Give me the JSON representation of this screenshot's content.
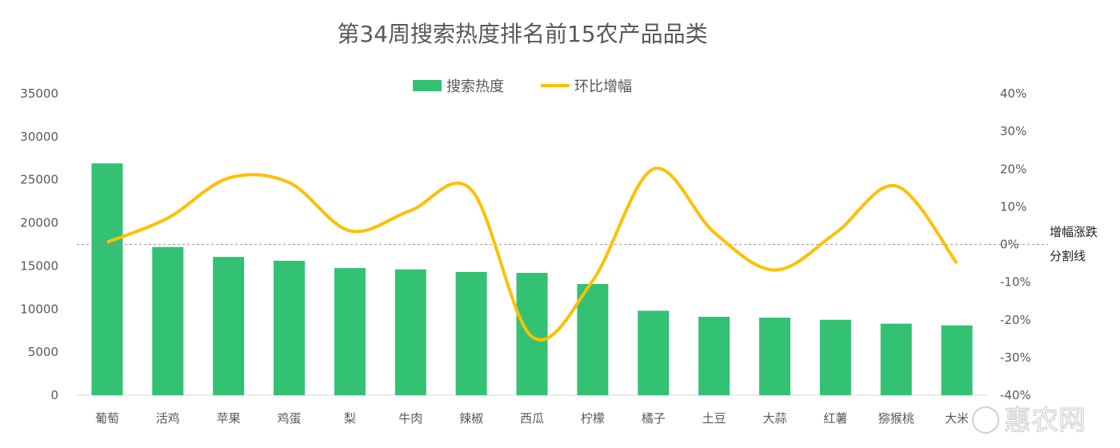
{
  "chart_data": {
    "type": "bar",
    "title": "第34周搜索热度排名前15农产品品类",
    "categories": [
      "葡萄",
      "活鸡",
      "苹果",
      "鸡蛋",
      "梨",
      "牛肉",
      "辣椒",
      "西瓜",
      "柠檬",
      "橘子",
      "土豆",
      "大蒜",
      "红薯",
      "猕猴桃",
      "大米"
    ],
    "series": [
      {
        "name": "搜索热度",
        "type": "bar",
        "axis": "left",
        "color": "#33c173",
        "values": [
          26900,
          17200,
          16050,
          15600,
          14750,
          14600,
          14300,
          14200,
          12900,
          9800,
          9100,
          9000,
          8750,
          8300,
          8100
        ]
      },
      {
        "name": "环比增幅",
        "type": "line",
        "axis": "right",
        "color": "#ffc000",
        "unit": "%",
        "values": [
          0.6,
          7,
          17.6,
          16.4,
          3.6,
          9,
          14.5,
          -24.5,
          -9.6,
          20,
          3.2,
          -6.8,
          3,
          15.5,
          -5
        ]
      }
    ],
    "left_axis": {
      "range": [
        0,
        35000
      ],
      "ticks": [
        "0",
        "5000",
        "10000",
        "15000",
        "20000",
        "25000",
        "30000",
        "35000"
      ]
    },
    "right_axis": {
      "range": [
        -40,
        40
      ],
      "ticks": [
        "-40%",
        "-30%",
        "-20%",
        "-10%",
        "0%",
        "10%",
        "20%",
        "30%",
        "40%"
      ]
    },
    "reference_line": {
      "value": 0,
      "label_lines": [
        "增幅涨跌",
        "分割线"
      ]
    },
    "legend_position": "top-center",
    "grid": false
  },
  "watermark": "惠农网"
}
